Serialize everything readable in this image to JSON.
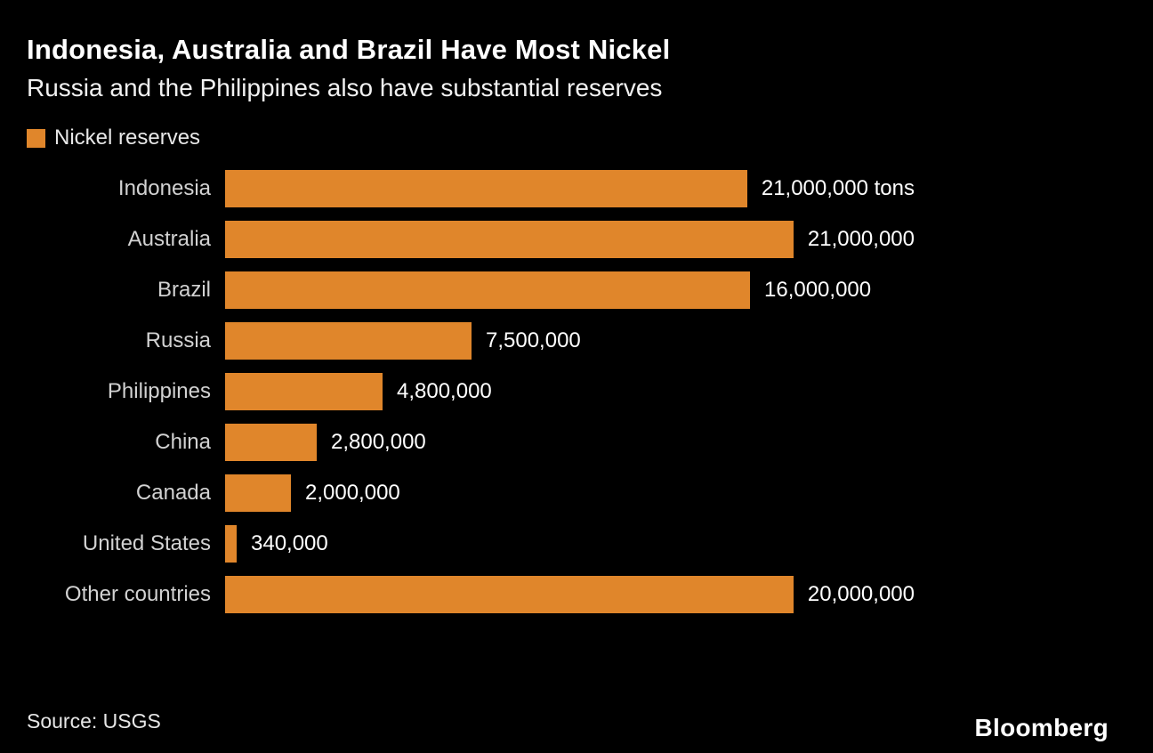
{
  "chart_data": {
    "type": "bar",
    "orientation": "horizontal",
    "title": "Indonesia, Australia and Brazil Have Most Nickel",
    "subtitle": "Russia and the Philippines also have substantial reserves",
    "legend_label": "Nickel reserves",
    "categories": [
      "Indonesia",
      "Australia",
      "Brazil",
      "Russia",
      "Philippines",
      "China",
      "Canada",
      "United States",
      "Other countries"
    ],
    "values": [
      21000000,
      21000000,
      16000000,
      7500000,
      4800000,
      2800000,
      2000000,
      340000,
      20000000
    ],
    "value_labels": [
      "21,000,000 tons",
      "21,000,000",
      "16,000,000",
      "7,500,000",
      "4,800,000",
      "2,800,000",
      "2,000,000",
      "340,000",
      "20,000,000"
    ],
    "xlim": [
      0,
      21000000
    ],
    "bar_color": "#E0862B",
    "background_color": "#000000",
    "grid": false,
    "legend_position": "top-left",
    "unit": "tons"
  },
  "footer": {
    "source": "Source: USGS",
    "brand": "Bloomberg"
  }
}
